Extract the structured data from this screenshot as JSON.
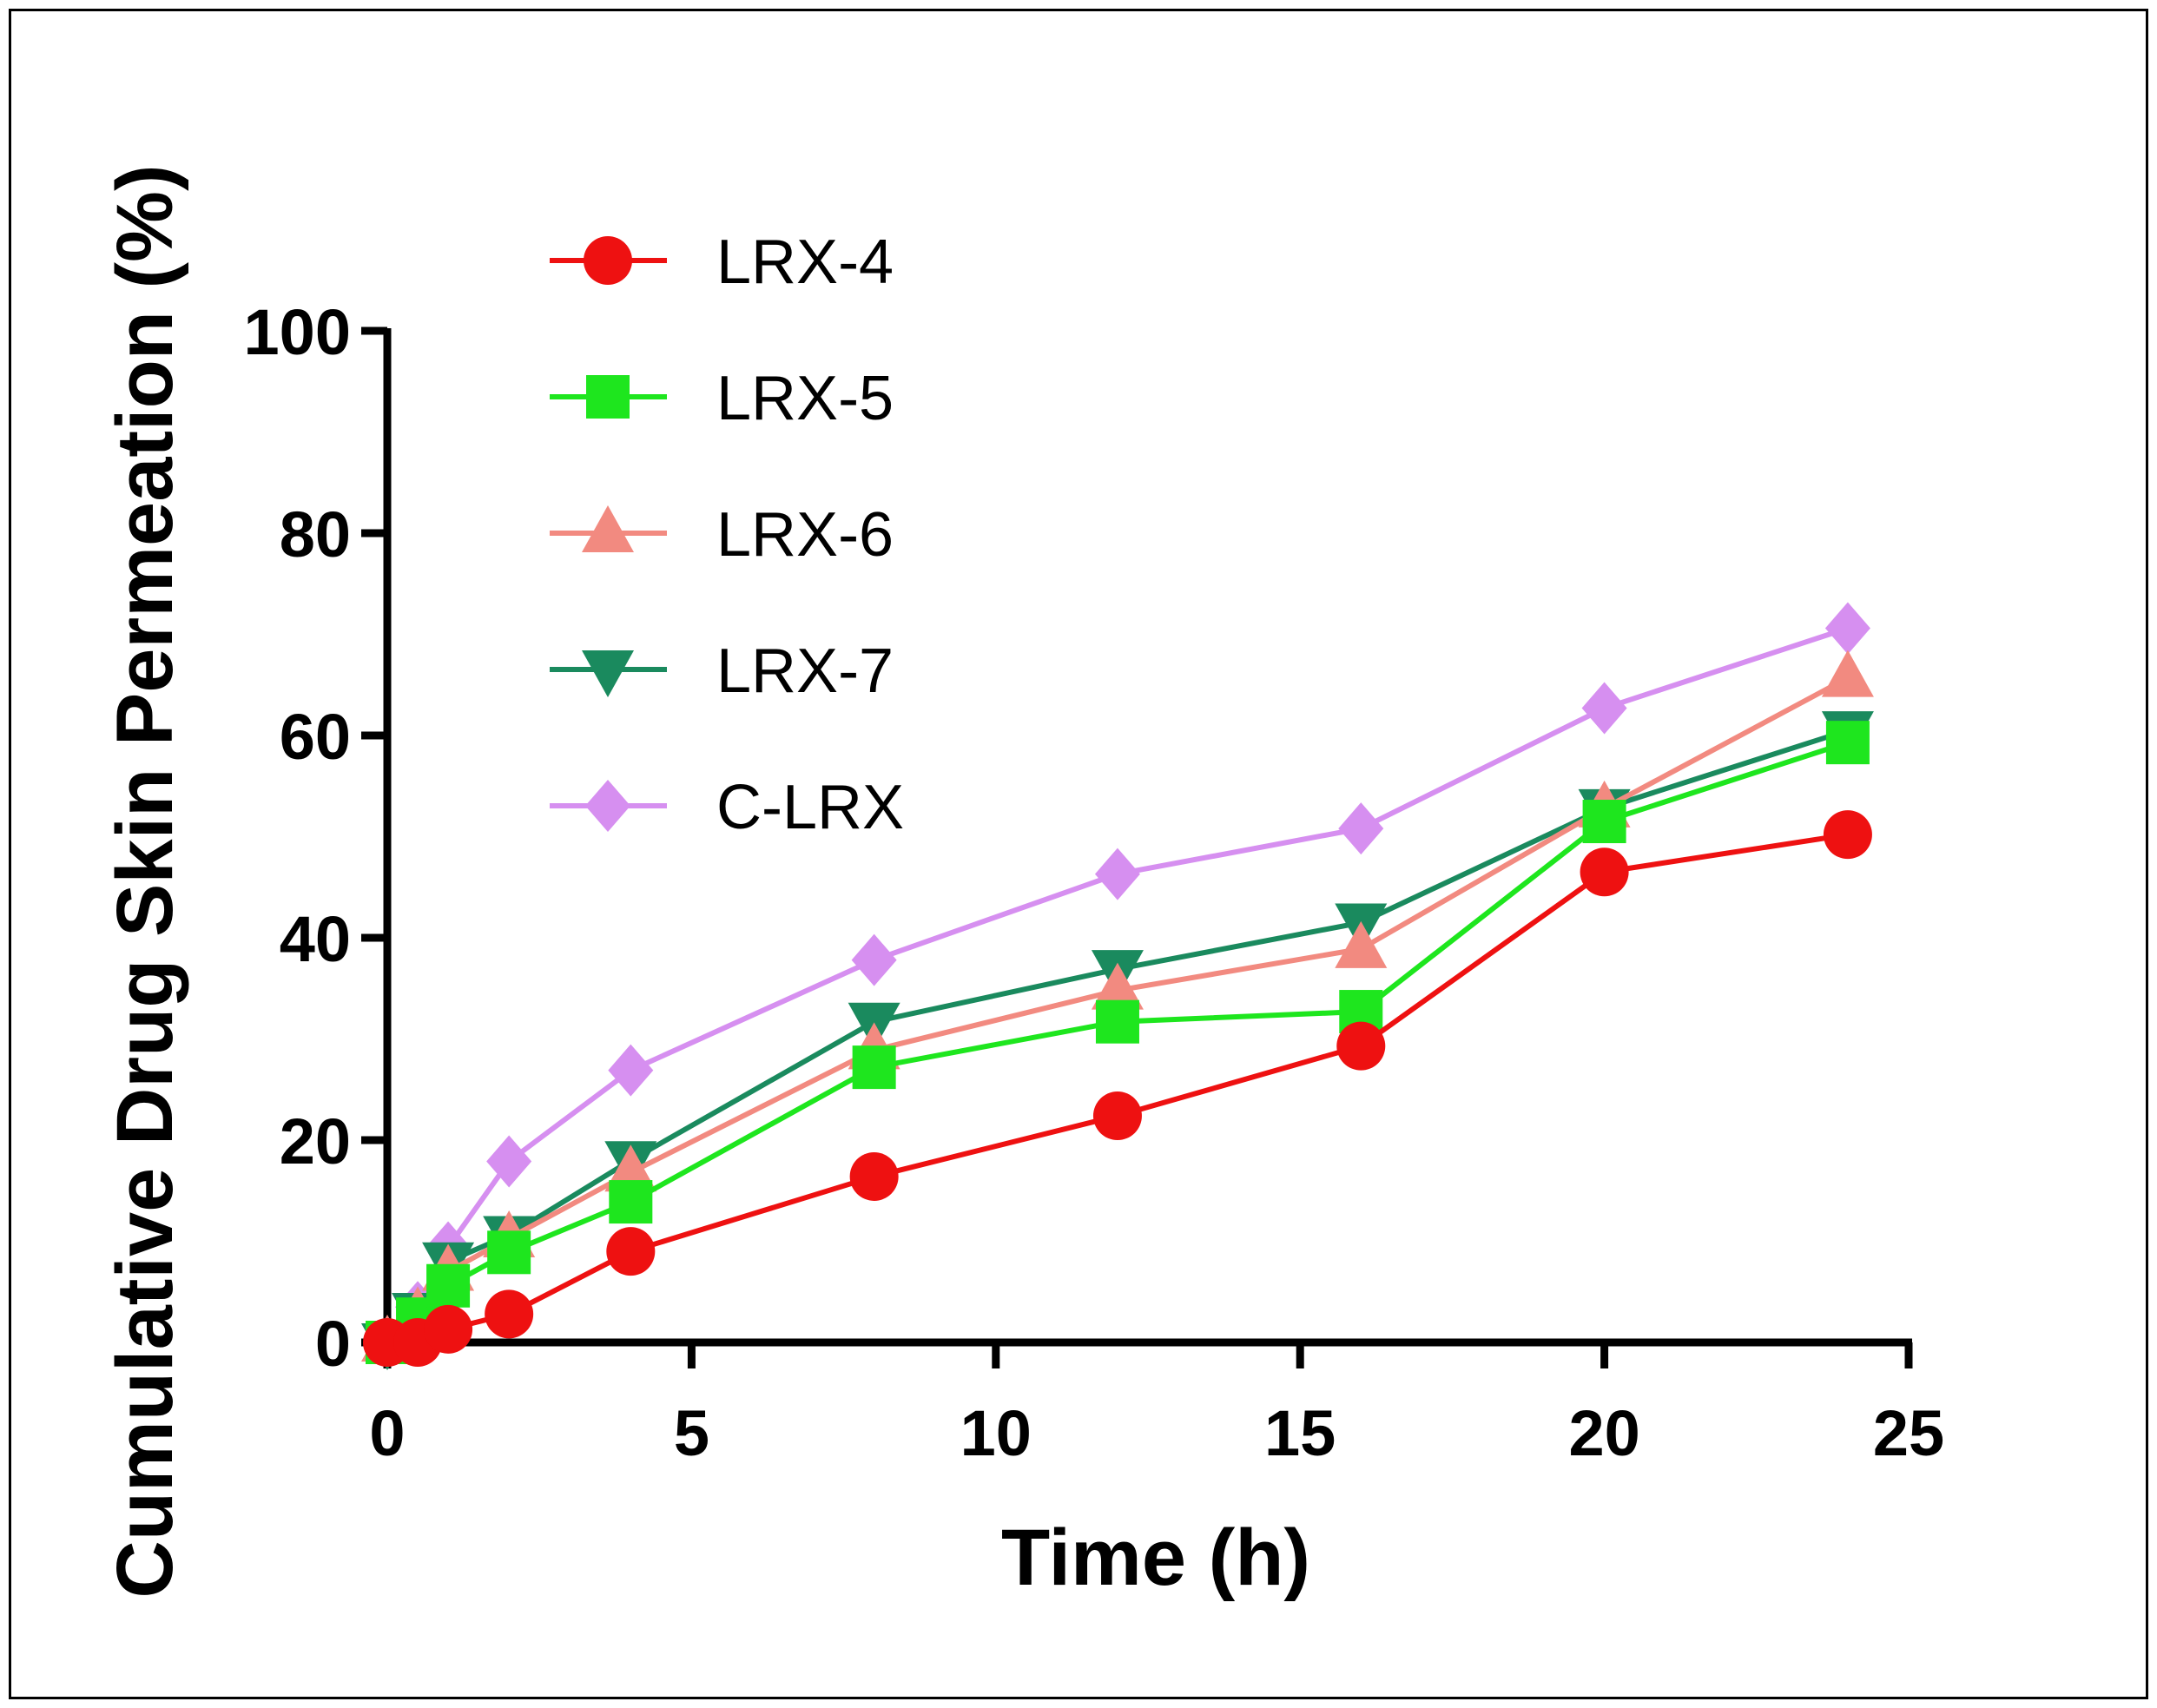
{
  "chart_data": {
    "type": "line",
    "title": "",
    "xlabel": "Time (h)",
    "ylabel": "Cumulative Drug Skin Permeation (%)",
    "xlim": [
      0,
      25
    ],
    "ylim": [
      0,
      100
    ],
    "xticks": [
      0,
      5,
      10,
      15,
      20,
      25
    ],
    "yticks": [
      0,
      20,
      40,
      60,
      80,
      100
    ],
    "grid": false,
    "legend_position": "top-left",
    "x": [
      0,
      0.5,
      1,
      2,
      4,
      8,
      12,
      16,
      20,
      24
    ],
    "series": [
      {
        "name": "LRX-4",
        "color": "#ee1111",
        "marker": "circle",
        "values": [
          0,
          0,
          1.3,
          2.8,
          9.0,
          16.4,
          22.4,
          29.3,
          46.5,
          50.2
        ]
      },
      {
        "name": "LRX-5",
        "color": "#1ee61e",
        "marker": "square",
        "values": [
          0,
          2.3,
          5.6,
          8.9,
          13.9,
          27.2,
          31.7,
          32.7,
          51.5,
          59.3
        ]
      },
      {
        "name": "LRX-6",
        "color": "#f28a80",
        "marker": "triangle-up",
        "values": [
          0,
          2.8,
          7.0,
          10.3,
          16.8,
          28.9,
          34.8,
          38.9,
          52.8,
          65.7
        ]
      },
      {
        "name": "LRX-7",
        "color": "#1a8a5e",
        "marker": "triangle-down",
        "values": [
          0,
          3.0,
          8.0,
          10.6,
          18.0,
          31.7,
          36.9,
          41.5,
          52.8,
          60.5
        ]
      },
      {
        "name": "C-LRX",
        "color": "#d68ff0",
        "marker": "diamond",
        "values": [
          0,
          3.5,
          9.4,
          17.9,
          26.9,
          37.8,
          46.3,
          50.8,
          62.7,
          70.6
        ]
      }
    ]
  }
}
